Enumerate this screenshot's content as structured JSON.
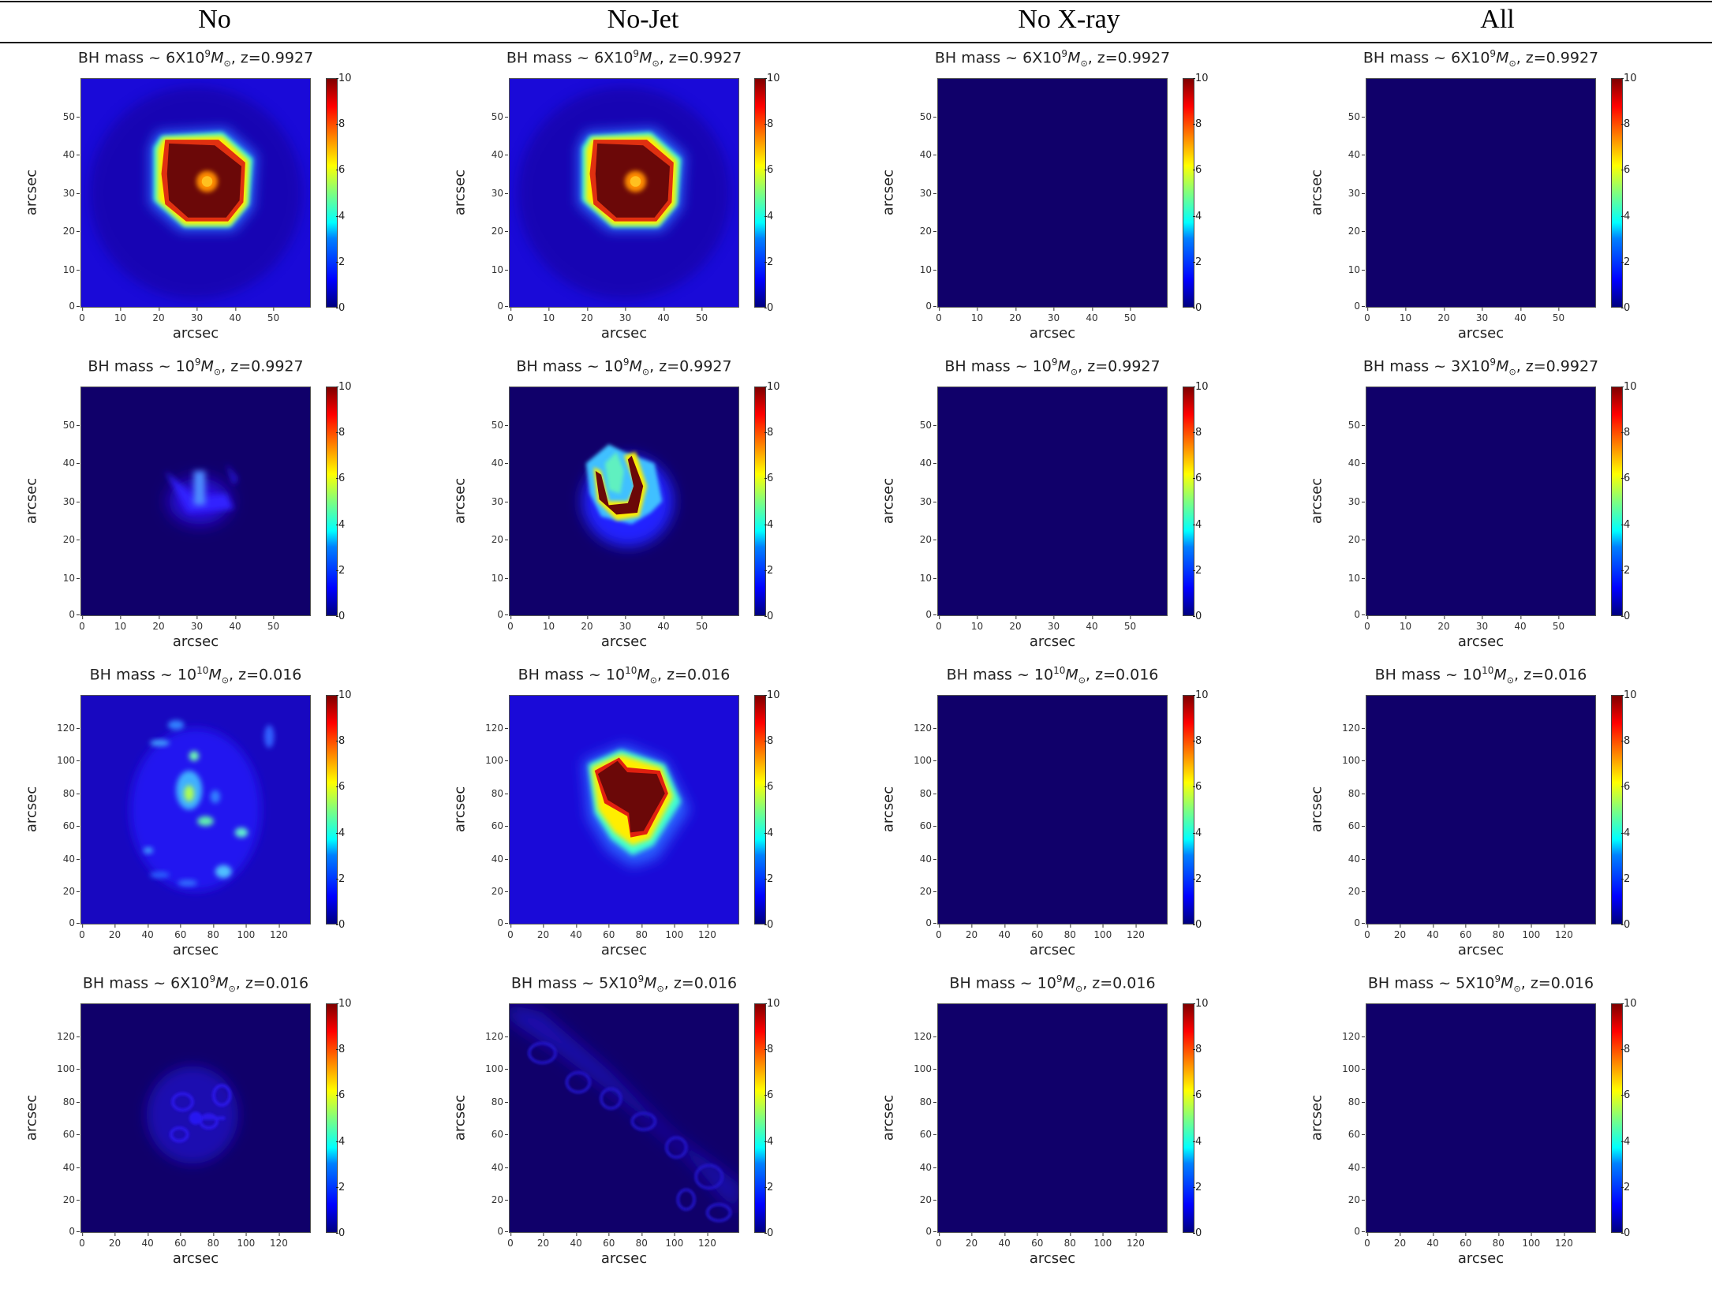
{
  "header": {
    "columns": [
      "No",
      "No-Jet",
      "No X-ray",
      "All"
    ]
  },
  "colorbar": {
    "ticks": [
      "10",
      "8",
      "6",
      "4",
      "2",
      "0"
    ],
    "range": [
      0,
      10
    ],
    "colormap": "jet"
  },
  "axes": {
    "xlabel": "arcsec",
    "ylabel": "arcsec",
    "small_ticks": [
      "0",
      "10",
      "20",
      "30",
      "40",
      "50"
    ],
    "large_ticks": [
      "0",
      "20",
      "40",
      "60",
      "80",
      "100",
      "120"
    ]
  },
  "panels": [
    {
      "row": 0,
      "col": 0,
      "title_prefix": "BH mass ~ 6X10",
      "exp": "9",
      "title_suffix": ", z=0.9927",
      "scale": "small",
      "feature": "bright-ring"
    },
    {
      "row": 0,
      "col": 1,
      "title_prefix": "BH mass ~ 6X10",
      "exp": "9",
      "title_suffix": ", z=0.9927",
      "scale": "small",
      "feature": "bright-ring"
    },
    {
      "row": 0,
      "col": 2,
      "title_prefix": "BH mass ~ 6X10",
      "exp": "9",
      "title_suffix": ", z=0.9927",
      "scale": "small",
      "feature": "empty"
    },
    {
      "row": 0,
      "col": 3,
      "title_prefix": "BH mass ~ 6X10",
      "exp": "9",
      "title_suffix": ", z=0.9927",
      "scale": "small",
      "feature": "empty"
    },
    {
      "row": 1,
      "col": 0,
      "title_prefix": "BH mass ~ 10",
      "exp": "9",
      "title_suffix": ", z=0.9927",
      "scale": "small",
      "feature": "faint-jet"
    },
    {
      "row": 1,
      "col": 1,
      "title_prefix": "BH mass ~ 10",
      "exp": "9",
      "title_suffix": ", z=0.9927",
      "scale": "small",
      "feature": "crescent"
    },
    {
      "row": 1,
      "col": 2,
      "title_prefix": "BH mass ~ 10",
      "exp": "9",
      "title_suffix": ", z=0.9927",
      "scale": "small",
      "feature": "empty"
    },
    {
      "row": 1,
      "col": 3,
      "title_prefix": "BH mass ~ 3X10",
      "exp": "9",
      "title_suffix": ", z=0.9927",
      "scale": "small",
      "feature": "empty"
    },
    {
      "row": 2,
      "col": 0,
      "title_prefix": "BH mass ~ 10",
      "exp": "10",
      "title_suffix": ", z=0.016",
      "scale": "large",
      "feature": "clumpy"
    },
    {
      "row": 2,
      "col": 1,
      "title_prefix": "BH mass ~ 10",
      "exp": "10",
      "title_suffix": ", z=0.016",
      "scale": "large",
      "feature": "heart-blob"
    },
    {
      "row": 2,
      "col": 2,
      "title_prefix": "BH mass ~ 10",
      "exp": "10",
      "title_suffix": ", z=0.016",
      "scale": "large",
      "feature": "empty"
    },
    {
      "row": 2,
      "col": 3,
      "title_prefix": "BH mass ~ 10",
      "exp": "10",
      "title_suffix": ", z=0.016",
      "scale": "large",
      "feature": "empty"
    },
    {
      "row": 3,
      "col": 0,
      "title_prefix": "BH mass ~ 6X10",
      "exp": "9",
      "title_suffix": ", z=0.016",
      "scale": "large",
      "feature": "faint-web"
    },
    {
      "row": 3,
      "col": 1,
      "title_prefix": "BH mass ~ 5X10",
      "exp": "9",
      "title_suffix": ", z=0.016",
      "scale": "large",
      "feature": "diagonal-web"
    },
    {
      "row": 3,
      "col": 2,
      "title_prefix": "BH mass ~ 10",
      "exp": "9",
      "title_suffix": ", z=0.016",
      "scale": "large",
      "feature": "empty"
    },
    {
      "row": 3,
      "col": 3,
      "title_prefix": "BH mass ~ 5X10",
      "exp": "9",
      "title_suffix": ", z=0.016",
      "scale": "large",
      "feature": "empty"
    }
  ],
  "chart_data": {
    "type": "heatmap",
    "title": "",
    "layout": {
      "rows": 4,
      "cols": 4
    },
    "column_labels": [
      "No",
      "No-Jet",
      "No X-ray",
      "All"
    ],
    "xlabel": "arcsec",
    "ylabel": "arcsec",
    "colorbar": {
      "min": 0,
      "max": 10,
      "ticks": [
        0,
        2,
        4,
        6,
        8,
        10
      ],
      "colormap": "jet"
    },
    "panels": [
      {
        "row": 1,
        "column": "No",
        "title": "BH mass ~ 6X10^9 M_sun, z=0.9927",
        "xlim": [
          0,
          60
        ],
        "ylim": [
          0,
          60
        ],
        "description": "saturated (10) ring region ~x 20-45, y 20-45 with peak ~7 at center (33,33); faint diffuse halo ~1-2"
      },
      {
        "row": 1,
        "column": "No-Jet",
        "title": "BH mass ~ 6X10^9 M_sun, z=0.9927",
        "xlim": [
          0,
          60
        ],
        "ylim": [
          0,
          60
        ],
        "description": "saturated (10) ring region ~x 20-45, y 20-45 with peak ~7 at center; halo ~1-2"
      },
      {
        "row": 1,
        "column": "No X-ray",
        "title": "BH mass ~ 6X10^9 M_sun, z=0.9927",
        "xlim": [
          0,
          60
        ],
        "ylim": [
          0,
          60
        ],
        "description": "uniform ~0"
      },
      {
        "row": 1,
        "column": "All",
        "title": "BH mass ~ 6X10^9 M_sun, z=0.9927",
        "xlim": [
          0,
          60
        ],
        "ylim": [
          0,
          60
        ],
        "description": "uniform ~0"
      },
      {
        "row": 2,
        "column": "No",
        "title": "BH mass ~ 10^9 M_sun, z=0.9927",
        "xlim": [
          0,
          60
        ],
        "ylim": [
          0,
          60
        ],
        "description": "faint jet-like feature near (31,33), max ~3"
      },
      {
        "row": 2,
        "column": "No-Jet",
        "title": "BH mass ~ 10^9 M_sun, z=0.9927",
        "xlim": [
          0,
          60
        ],
        "ylim": [
          0,
          60
        ],
        "description": "crescent-shaped saturated (10) structure x 22-36, y 25-43; surrounding ~3-6"
      },
      {
        "row": 2,
        "column": "No X-ray",
        "title": "BH mass ~ 10^9 M_sun, z=0.9927",
        "xlim": [
          0,
          60
        ],
        "ylim": [
          0,
          60
        ],
        "description": "uniform ~0"
      },
      {
        "row": 2,
        "column": "All",
        "title": "BH mass ~ 3X10^9 M_sun, z=0.9927",
        "xlim": [
          0,
          60
        ],
        "ylim": [
          0,
          60
        ],
        "description": "uniform ~0"
      },
      {
        "row": 3,
        "column": "No",
        "title": "BH mass ~ 10^10 M_sun, z=0.016",
        "xlim": [
          0,
          140
        ],
        "ylim": [
          0,
          140
        ],
        "description": "clumpy emission, peaks ~5-6 near (65,80) and (75,63); many ~2-4 clumps"
      },
      {
        "row": 3,
        "column": "No-Jet",
        "title": "BH mass ~ 10^10 M_sun, z=0.016",
        "xlim": [
          0,
          140
        ],
        "ylim": [
          0,
          140
        ],
        "description": "heart-shaped saturated (10) region x 55-95, y 55-100; surrounded by ~3-6 envelope"
      },
      {
        "row": 3,
        "column": "No X-ray",
        "title": "BH mass ~ 10^10 M_sun, z=0.016",
        "xlim": [
          0,
          140
        ],
        "ylim": [
          0,
          140
        ],
        "description": "uniform ~0"
      },
      {
        "row": 3,
        "column": "All",
        "title": "BH mass ~ 10^10 M_sun, z=0.016",
        "xlim": [
          0,
          140
        ],
        "ylim": [
          0,
          140
        ],
        "description": "uniform ~0"
      },
      {
        "row": 4,
        "column": "No",
        "title": "BH mass ~ 6X10^9 M_sun, z=0.016",
        "xlim": [
          0,
          140
        ],
        "ylim": [
          0,
          140
        ],
        "description": "faint web-like structure centered ~(70,70), max ~1.5"
      },
      {
        "row": 4,
        "column": "No-Jet",
        "title": "BH mass ~ 5X10^9 M_sun, z=0.016",
        "xlim": [
          0,
          140
        ],
        "ylim": [
          0,
          140
        ],
        "description": "faint diagonal filamentary web from top-left to bottom-right, max ~1"
      },
      {
        "row": 4,
        "column": "No X-ray",
        "title": "BH mass ~ 10^9 M_sun, z=0.016",
        "xlim": [
          0,
          140
        ],
        "ylim": [
          0,
          140
        ],
        "description": "uniform ~0"
      },
      {
        "row": 4,
        "column": "All",
        "title": "BH mass ~ 5X10^9 M_sun, z=0.016",
        "xlim": [
          0,
          140
        ],
        "ylim": [
          0,
          140
        ],
        "description": "uniform ~0"
      }
    ]
  }
}
